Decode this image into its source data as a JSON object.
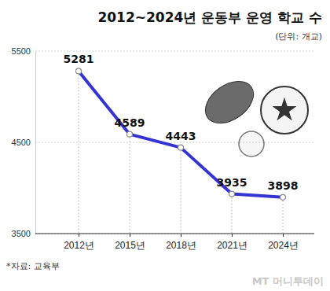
{
  "chart_data": {
    "type": "line",
    "title": "2012~2024년 운동부 운영 학교 수",
    "subtitle": "(단위: 개교)",
    "categories": [
      "2012년",
      "2015년",
      "2018년",
      "2021년",
      "2024년"
    ],
    "values": [
      5281,
      4589,
      4443,
      3935,
      3898
    ],
    "color": "#3434d4",
    "marker": "circle",
    "data_labels": true,
    "grid": true,
    "ylim": [
      3500,
      5500
    ],
    "yticks": [
      3500,
      4500,
      5500
    ],
    "annotations": [
      "*자료: 교육부",
      "MT 머니투데이"
    ]
  }
}
